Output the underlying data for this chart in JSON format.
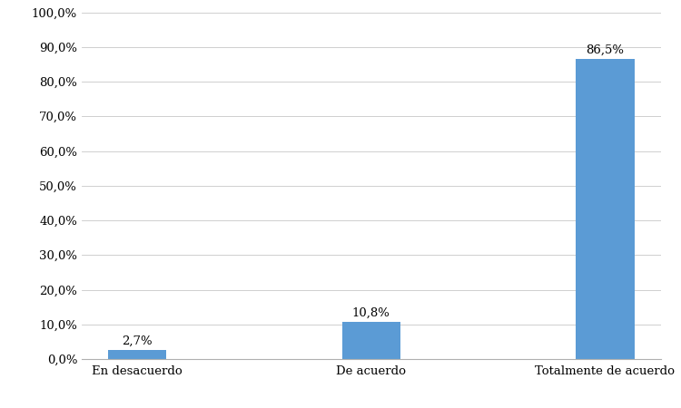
{
  "categories": [
    "En desacuerdo",
    "De acuerdo",
    "Totalmente de acuerdo"
  ],
  "values": [
    2.7,
    10.8,
    86.5
  ],
  "labels": [
    "2,7%",
    "10,8%",
    "86,5%"
  ],
  "bar_color": "#5B9BD5",
  "ylim": [
    0,
    100
  ],
  "yticks": [
    0,
    10,
    20,
    30,
    40,
    50,
    60,
    70,
    80,
    90,
    100
  ],
  "ytick_labels": [
    "0,0%",
    "10,0%",
    "20,0%",
    "30,0%",
    "40,0%",
    "50,0%",
    "60,0%",
    "70,0%",
    "80,0%",
    "90,0%",
    "100,0%"
  ],
  "bar_width": 0.25,
  "label_fontsize": 9.5,
  "tick_fontsize": 9.5,
  "background_color": "#ffffff",
  "grid_color": "#c8c8c8"
}
